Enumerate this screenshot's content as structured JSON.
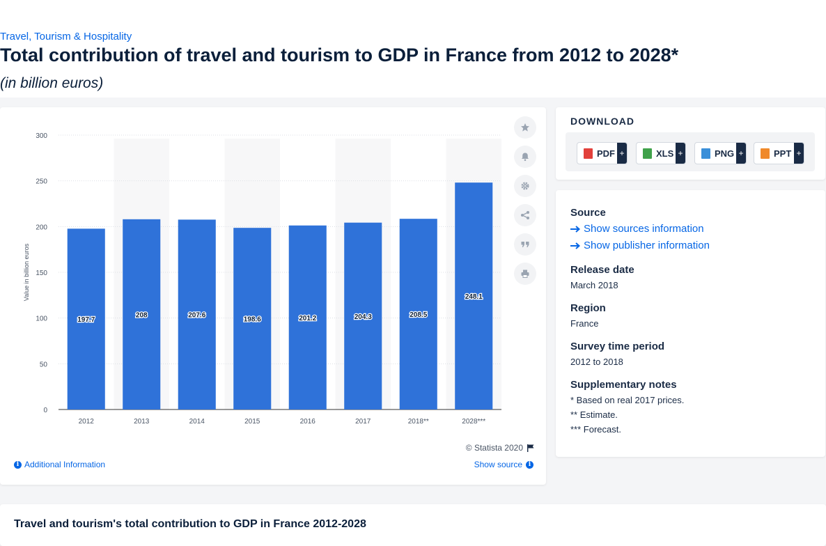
{
  "header": {
    "breadcrumb": "Travel, Tourism & Hospitality",
    "title": "Total contribution of travel and tourism to GDP in France from 2012 to 2028*",
    "subtitle": "(in billion euros)"
  },
  "chart_data": {
    "type": "bar",
    "categories": [
      "2012",
      "2013",
      "2014",
      "2015",
      "2016",
      "2017",
      "2018**",
      "2028***"
    ],
    "values": [
      197.7,
      208,
      207.6,
      198.6,
      201.2,
      204.3,
      208.5,
      248.1
    ],
    "value_labels": [
      "197.7",
      "208",
      "207.6",
      "198.6",
      "201.2",
      "204.3",
      "208.5",
      "248.1"
    ],
    "title": "",
    "xlabel": "",
    "ylabel": "Value in billion euros",
    "ylim": [
      0,
      300
    ],
    "yticks": [
      0,
      50,
      100,
      150,
      200,
      250,
      300
    ],
    "grid": true,
    "bar_color": "#2f72d9"
  },
  "chart_footer": {
    "copyright": "© Statista 2020",
    "additional_info": "Additional Information",
    "show_source": "Show source"
  },
  "toolbar": {
    "icons": [
      "star-icon",
      "bell-icon",
      "gear-icon",
      "share-icon",
      "quote-icon",
      "print-icon"
    ]
  },
  "download": {
    "heading": "DOWNLOAD",
    "buttons": [
      {
        "label": "PDF",
        "color": "#e2403b"
      },
      {
        "label": "XLS",
        "color": "#3fa14a"
      },
      {
        "label": "PNG",
        "color": "#3a8fd9"
      },
      {
        "label": "PPT",
        "color": "#f0892a"
      }
    ],
    "plus": "+"
  },
  "info": {
    "source_label": "Source",
    "show_sources": "Show sources information",
    "show_publisher": "Show publisher information",
    "release_label": "Release date",
    "release_value": "March 2018",
    "region_label": "Region",
    "region_value": "France",
    "period_label": "Survey time period",
    "period_value": "2012 to 2018",
    "notes_label": "Supplementary notes",
    "notes": [
      "* Based on real 2017 prices.",
      "** Estimate.",
      "*** Forecast."
    ]
  },
  "bottom": {
    "title": "Travel and tourism's total contribution to GDP in France 2012-2028"
  }
}
